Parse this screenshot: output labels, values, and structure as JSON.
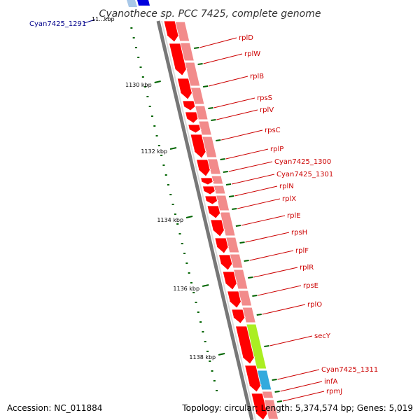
{
  "title": "Cyanothece sp. PCC 7425, complete genome",
  "footer": {
    "accession": "Accession: NC_011884",
    "summary": "Topology: circular; Length: 5,374,574 bp; Genes: 5,019"
  },
  "colors": {
    "gene_fill": "#ff0000",
    "gene_light": "#f28b8b",
    "gene_label": "#cc0000",
    "other_label": "#00008b",
    "tick": "#006400",
    "backbone": "#777777",
    "secY": "#aaee22",
    "infA": "#33aadd",
    "blue_gene": "#0000dd"
  },
  "other_gene": {
    "name": "Cyan7425_1291",
    "tick_text": "11...kbp"
  },
  "scale_ticks": [
    "1130 kbp",
    "1132 kbp",
    "1134 kbp",
    "1136 kbp",
    "1138 kbp"
  ],
  "genes": [
    "rplD",
    "rplW",
    "rplB",
    "rpsS",
    "rplV",
    "rpsC",
    "rplP",
    "Cyan7425_1300",
    "Cyan7425_1301",
    "rplN",
    "rplX",
    "rplE",
    "rpsH",
    "rplF",
    "rplR",
    "rpsE",
    "rplO",
    "secY",
    "Cyan7425_1311",
    "infA",
    "rpmJ"
  ]
}
